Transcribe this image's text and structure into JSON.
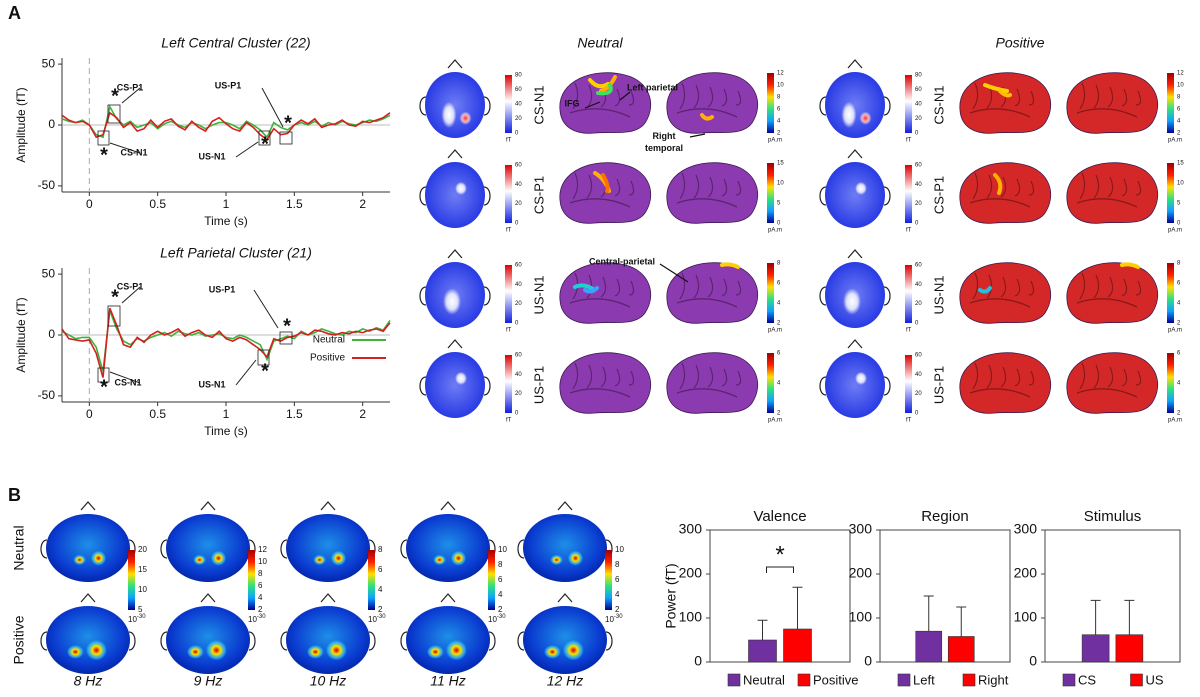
{
  "panel_labels": [
    "A",
    "B"
  ],
  "chart_data": [
    {
      "type": "line",
      "title": "Left Central Cluster (22)",
      "x_label": "Time (s)",
      "y_label": "Amplitude (fT)",
      "x": [
        -0.2,
        -0.15,
        -0.1,
        -0.05,
        0,
        0.05,
        0.1,
        0.15,
        0.2,
        0.25,
        0.3,
        0.35,
        0.4,
        0.45,
        0.5,
        0.55,
        0.6,
        0.65,
        0.7,
        0.75,
        0.8,
        0.85,
        0.9,
        0.95,
        1,
        1.05,
        1.1,
        1.15,
        1.2,
        1.25,
        1.3,
        1.35,
        1.4,
        1.45,
        1.5,
        1.55,
        1.6,
        1.65,
        1.7,
        1.75,
        1.8,
        1.85,
        1.9,
        1.95,
        2,
        2.05,
        2.1,
        2.15,
        2.2
      ],
      "series": [
        {
          "name": "Neutral",
          "color": "#3cb43c",
          "values": [
            5,
            3,
            2,
            4,
            0,
            -8,
            -10,
            15,
            5,
            0,
            3,
            -2,
            0,
            2,
            -3,
            1,
            3,
            0,
            -2,
            2,
            0,
            -3,
            0,
            2,
            2,
            0,
            -3,
            3,
            0,
            -4,
            -10,
            2,
            -2,
            -4,
            0,
            2,
            0,
            3,
            -1,
            2,
            0,
            3,
            1,
            0,
            2,
            4,
            3,
            5,
            8
          ]
        },
        {
          "name": "Positive",
          "color": "#d42020",
          "values": [
            8,
            4,
            2,
            3,
            0,
            -10,
            -8,
            10,
            6,
            -2,
            2,
            -5,
            -3,
            4,
            -2,
            3,
            5,
            -1,
            -4,
            3,
            -2,
            -5,
            3,
            6,
            1,
            -3,
            -5,
            2,
            -2,
            -8,
            -12,
            -3,
            -8,
            -7,
            0,
            4,
            1,
            5,
            -2,
            0,
            1,
            4,
            0,
            -1,
            3,
            2,
            4,
            6,
            10
          ]
        }
      ],
      "xlim": [
        -0.2,
        2.2
      ],
      "xticks": [
        0,
        0.5,
        1,
        1.5,
        2
      ],
      "ylim": [
        -55,
        55
      ],
      "yticks": [
        -50,
        0,
        50
      ],
      "annotations": [
        "CS-P1",
        "CS-N1",
        "US-P1",
        "US-N1",
        "*",
        "*",
        "*",
        "*"
      ]
    },
    {
      "type": "line",
      "title": "Left Parietal Cluster (21)",
      "x_label": "Time (s)",
      "y_label": "Amplitude (fT)",
      "x": [
        -0.2,
        -0.15,
        -0.1,
        -0.05,
        0,
        0.05,
        0.1,
        0.15,
        0.2,
        0.25,
        0.3,
        0.35,
        0.4,
        0.45,
        0.5,
        0.55,
        0.6,
        0.65,
        0.7,
        0.75,
        0.8,
        0.85,
        0.9,
        0.95,
        1,
        1.05,
        1.1,
        1.15,
        1.2,
        1.25,
        1.3,
        1.35,
        1.4,
        1.45,
        1.5,
        1.55,
        1.6,
        1.65,
        1.7,
        1.75,
        1.8,
        1.85,
        1.9,
        1.95,
        2,
        2.05,
        2.1,
        2.15,
        2.2
      ],
      "series": [
        {
          "name": "Neutral",
          "color": "#3cb43c",
          "values": [
            3,
            0,
            -3,
            -2,
            -2,
            -10,
            -30,
            20,
            5,
            -5,
            -8,
            -3,
            -5,
            -2,
            0,
            2,
            -1,
            3,
            1,
            0,
            2,
            -1,
            0,
            1,
            -2,
            -3,
            0,
            -2,
            -5,
            -8,
            -20,
            -5,
            -3,
            -1,
            -3,
            3,
            0,
            2,
            5,
            3,
            1,
            0,
            3,
            2,
            5,
            3,
            6,
            4,
            12
          ]
        },
        {
          "name": "Positive",
          "color": "#d42020",
          "values": [
            5,
            -3,
            -4,
            -5,
            -4,
            -15,
            -35,
            22,
            8,
            -8,
            -10,
            -2,
            -6,
            0,
            3,
            0,
            2,
            5,
            -1,
            2,
            4,
            0,
            -2,
            3,
            -3,
            -5,
            -2,
            -4,
            -8,
            -12,
            -18,
            -3,
            -5,
            -2,
            -1,
            2,
            0,
            4,
            3,
            1,
            0,
            2,
            1,
            3,
            2,
            4,
            5,
            3,
            10
          ]
        }
      ],
      "xlim": [
        -0.2,
        2.2
      ],
      "xticks": [
        0,
        0.5,
        1,
        1.5,
        2
      ],
      "ylim": [
        -55,
        55
      ],
      "yticks": [
        -50,
        0,
        50
      ],
      "legend": "lower right",
      "annotations": [
        "CS-P1",
        "CS-N1",
        "US-P1",
        "US-N1",
        "*",
        "*",
        "*",
        "*"
      ]
    },
    {
      "type": "bar",
      "title": "Valence",
      "y_label": "Power (fT)",
      "categories": [
        "Neutral",
        "Positive"
      ],
      "values": [
        50,
        75
      ],
      "errors": [
        45,
        95
      ],
      "colors": [
        "#7030a0",
        "#ff0000"
      ],
      "ylim": [
        0,
        300
      ],
      "yticks": [
        0,
        100,
        200,
        300
      ],
      "annotations": [
        "*"
      ]
    },
    {
      "type": "bar",
      "title": "Region",
      "categories": [
        "Left",
        "Right"
      ],
      "values": [
        70,
        58
      ],
      "errors": [
        80,
        67
      ],
      "colors": [
        "#7030a0",
        "#ff0000"
      ],
      "ylim": [
        0,
        300
      ],
      "yticks": [
        0,
        100,
        200,
        300
      ]
    },
    {
      "type": "bar",
      "title": "Stimulus",
      "categories": [
        "CS",
        "US"
      ],
      "values": [
        62,
        62
      ],
      "errors": [
        78,
        78
      ],
      "colors": [
        "#7030a0",
        "#ff0000"
      ],
      "ylim": [
        0,
        300
      ],
      "yticks": [
        0,
        100,
        200,
        300
      ]
    }
  ],
  "source_maps": {
    "titles": [
      "Neutral",
      "Positive"
    ],
    "rows": [
      "CS-N1",
      "CS-P1",
      "US-N1",
      "US-P1"
    ],
    "topo_ticks": [
      [
        "80",
        "60",
        "40",
        "20",
        "0"
      ],
      [
        "60",
        "40",
        "20",
        "0"
      ],
      [
        "60",
        "40",
        "20",
        "0"
      ],
      [
        "60",
        "40",
        "20",
        "0"
      ]
    ],
    "topo_unit": "fT",
    "source_ticks": [
      [
        "12",
        "10",
        "8",
        "6",
        "4",
        "2"
      ],
      [
        "15",
        "10",
        "5",
        "0"
      ],
      [
        "8",
        "6",
        "4",
        "2"
      ],
      [
        "6",
        "4",
        "2"
      ]
    ],
    "source_unit": "pA.m",
    "annotations": [
      "IFG",
      "Left parietal",
      [
        "Right",
        "temporal"
      ],
      "Central-parietal"
    ]
  },
  "spectral_maps": {
    "rows": [
      "Neutral",
      "Positive"
    ],
    "frequencies": [
      "8 Hz",
      "9 Hz",
      "10 Hz",
      "11 Hz",
      "12 Hz"
    ],
    "ticks": [
      [
        "20",
        "15",
        "10",
        "5"
      ],
      [
        "12",
        "10",
        "8",
        "6",
        "4",
        "2"
      ],
      [
        "8",
        "6",
        "4",
        "2"
      ],
      [
        "10",
        "8",
        "6",
        "4",
        "2"
      ],
      [
        "10",
        "8",
        "6",
        "4",
        "2"
      ]
    ],
    "unit_base": "10",
    "unit_exponent": "-30"
  }
}
